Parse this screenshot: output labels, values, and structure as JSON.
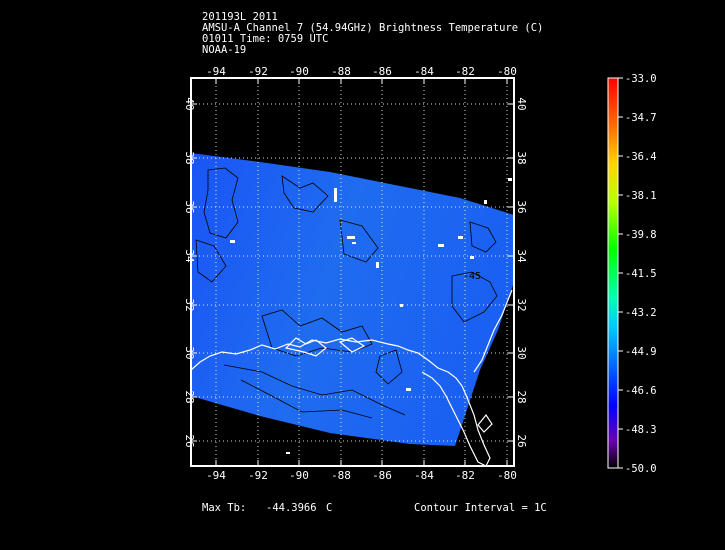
{
  "header": {
    "line1": "201193L 2011",
    "line2": "AMSU-A Channel 7 (54.94GHz) Brightness Temperature (C)",
    "line3": "01011 Time: 0759 UTC",
    "line4": "NOAA-19"
  },
  "map": {
    "lon_ticks": [
      "-94",
      "-92",
      "-90",
      "-88",
      "-86",
      "-84",
      "-82",
      "-80"
    ],
    "lat_ticks": [
      "40",
      "38",
      "36",
      "34",
      "32",
      "30",
      "28",
      "26"
    ],
    "contour_label": "-45",
    "swath_color": "#1e66f0"
  },
  "colorbar": {
    "labels": [
      "-33.0",
      "-34.7",
      "-36.4",
      "-38.1",
      "-39.8",
      "-41.5",
      "-43.2",
      "-44.9",
      "-46.6",
      "-48.3",
      "-50.0"
    ]
  },
  "footer": {
    "max_label": "Max Tb:",
    "max_value": "-44.3966",
    "max_unit": "C",
    "contour_interval": "Contour Interval = 1C"
  }
}
